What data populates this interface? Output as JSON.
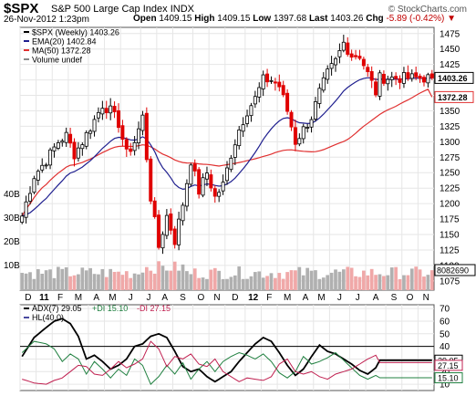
{
  "header": {
    "symbol": "$SPX",
    "description": "S&P 500 Large Cap Index",
    "exchange": "INDX",
    "brand": "© StockCharts.com",
    "date": "26-Nov-2012 1:23pm",
    "open_label": "Open",
    "open": "1409.15",
    "high_label": "High",
    "high": "1409.15",
    "low_label": "Low",
    "low": "1397.68",
    "last_label": "Last",
    "last": "1403.26",
    "chg_label": "Chg",
    "chg": "-5.89 (-0.42%)",
    "chg_arrow": "▼"
  },
  "colors": {
    "up": "#000000",
    "down": "#e00000",
    "ema": "#1f1f8f",
    "ma": "#e03030",
    "volume_up": "#b0b0b0",
    "volume_down": "#f0a8a8",
    "adx": "#000000",
    "plus_di": "#208040",
    "minus_di": "#c02050",
    "hl": "#4a4aa0"
  },
  "price_legend": [
    "$SPX (Weekly) 1403.26",
    "EMA(20) 1402.84",
    "MA(50) 1372.28",
    "Volume undef"
  ],
  "indicator_legend": {
    "adx": "ADX(7) 29.05",
    "plus_di": "+DI 15.10",
    "minus_di": "-DI 27.15",
    "hl": "HL(40.0)"
  },
  "chart_data": [
    {
      "type": "candlestick",
      "title": "$SPX (Weekly) 1403.26",
      "ylim": [
        1060,
        1485
      ],
      "yticks": [
        1075,
        1100,
        1125,
        1150,
        1175,
        1200,
        1225,
        1250,
        1275,
        1300,
        1325,
        1350,
        1375,
        1400,
        1425,
        1450,
        1475
      ],
      "value_tags": [
        "1403.26",
        "1372.28"
      ],
      "volume_ticks": [
        "40B",
        "30B",
        "20B",
        "10B"
      ],
      "volume_tag": "8082690",
      "x_labels": [
        "D",
        "11",
        "F",
        "M",
        "A",
        "M",
        "J",
        "J",
        "A",
        "S",
        "O",
        "N",
        "D",
        "12",
        "F",
        "M",
        "A",
        "M",
        "J",
        "J",
        "A",
        "S",
        "O",
        "N"
      ],
      "x_bold": [
        "11",
        "12"
      ],
      "weeks_per_label": [
        4,
        4,
        4,
        5,
        4,
        4,
        5,
        4,
        4,
        5,
        4,
        4,
        5,
        4,
        4,
        5,
        4,
        4,
        5,
        4,
        5,
        4,
        4,
        4
      ],
      "price_knots": [
        [
          0,
          1180
        ],
        [
          3,
          1245
        ],
        [
          6,
          1270
        ],
        [
          9,
          1300
        ],
        [
          11,
          1310
        ],
        [
          13,
          1280
        ],
        [
          15,
          1300
        ],
        [
          18,
          1335
        ],
        [
          20,
          1360
        ],
        [
          22,
          1350
        ],
        [
          24,
          1330
        ],
        [
          26,
          1280
        ],
        [
          28,
          1300
        ],
        [
          30,
          1340
        ],
        [
          32,
          1210
        ],
        [
          34,
          1130
        ],
        [
          36,
          1180
        ],
        [
          38,
          1140
        ],
        [
          40,
          1200
        ],
        [
          42,
          1270
        ],
        [
          44,
          1220
        ],
        [
          46,
          1250
        ],
        [
          48,
          1210
        ],
        [
          50,
          1230
        ],
        [
          52,
          1280
        ],
        [
          54,
          1320
        ],
        [
          56,
          1350
        ],
        [
          58,
          1370
        ],
        [
          60,
          1400
        ],
        [
          62,
          1400
        ],
        [
          64,
          1390
        ],
        [
          66,
          1350
        ],
        [
          68,
          1300
        ],
        [
          70,
          1320
        ],
        [
          72,
          1340
        ],
        [
          74,
          1380
        ],
        [
          76,
          1410
        ],
        [
          78,
          1430
        ],
        [
          80,
          1460
        ],
        [
          82,
          1440
        ],
        [
          84,
          1440
        ],
        [
          86,
          1410
        ],
        [
          88,
          1380
        ],
        [
          89,
          1403.26
        ]
      ],
      "series": [
        {
          "name": "EMA(20)",
          "last": 1402.84
        },
        {
          "name": "MA(50)",
          "last": 1372.28
        }
      ]
    },
    {
      "type": "line",
      "title": "ADX(7) 29.05 +DI 15.10 -DI 27.15",
      "ylim": [
        5,
        73
      ],
      "yticks": [
        10,
        20,
        30,
        40,
        50,
        60,
        70
      ],
      "hline": 40,
      "value_tags": [
        "29.05",
        "27.15",
        "15.10"
      ],
      "series": [
        {
          "name": "ADX(7)",
          "knots": [
            [
              0,
              32
            ],
            [
              3,
              47
            ],
            [
              6,
              55
            ],
            [
              8,
              60
            ],
            [
              10,
              62
            ],
            [
              12,
              58
            ],
            [
              14,
              48
            ],
            [
              16,
              30
            ],
            [
              18,
              33
            ],
            [
              20,
              28
            ],
            [
              22,
              22
            ],
            [
              24,
              25
            ],
            [
              26,
              30
            ],
            [
              28,
              40
            ],
            [
              30,
              42
            ],
            [
              32,
              48
            ],
            [
              34,
              50
            ],
            [
              36,
              47
            ],
            [
              38,
              36
            ],
            [
              40,
              24
            ],
            [
              42,
              20
            ],
            [
              44,
              22
            ],
            [
              46,
              16
            ],
            [
              48,
              12
            ],
            [
              50,
              16
            ],
            [
              52,
              20
            ],
            [
              54,
              28
            ],
            [
              56,
              35
            ],
            [
              58,
              42
            ],
            [
              60,
              47
            ],
            [
              62,
              44
            ],
            [
              64,
              35
            ],
            [
              66,
              25
            ],
            [
              68,
              17
            ],
            [
              70,
              22
            ],
            [
              72,
              32
            ],
            [
              74,
              41
            ],
            [
              76,
              36
            ],
            [
              78,
              34
            ],
            [
              80,
              30
            ],
            [
              82,
              26
            ],
            [
              84,
              21
            ],
            [
              86,
              18
            ],
            [
              88,
              23
            ],
            [
              89,
              29.05
            ]
          ]
        },
        {
          "name": "+DI",
          "knots": [
            [
              0,
              35
            ],
            [
              3,
              44
            ],
            [
              6,
              42
            ],
            [
              8,
              38
            ],
            [
              10,
              28
            ],
            [
              12,
              34
            ],
            [
              14,
              30
            ],
            [
              16,
              18
            ],
            [
              18,
              28
            ],
            [
              20,
              22
            ],
            [
              22,
              15
            ],
            [
              24,
              22
            ],
            [
              26,
              17
            ],
            [
              28,
              30
            ],
            [
              30,
              25
            ],
            [
              32,
              10
            ],
            [
              34,
              16
            ],
            [
              36,
              25
            ],
            [
              38,
              18
            ],
            [
              40,
              27
            ],
            [
              42,
              14
            ],
            [
              44,
              22
            ],
            [
              46,
              28
            ],
            [
              48,
              20
            ],
            [
              50,
              28
            ],
            [
              52,
              32
            ],
            [
              54,
              35
            ],
            [
              56,
              33
            ],
            [
              58,
              30
            ],
            [
              60,
              34
            ],
            [
              62,
              28
            ],
            [
              64,
              19
            ],
            [
              66,
              15
            ],
            [
              68,
              20
            ],
            [
              70,
              32
            ],
            [
              72,
              26
            ],
            [
              74,
              28
            ],
            [
              76,
              31
            ],
            [
              78,
              35
            ],
            [
              80,
              29
            ],
            [
              82,
              23
            ],
            [
              84,
              17
            ],
            [
              86,
              14
            ],
            [
              88,
              17
            ],
            [
              89,
              15.1
            ]
          ]
        },
        {
          "name": "-DI",
          "knots": [
            [
              0,
              14
            ],
            [
              3,
              11
            ],
            [
              6,
              10
            ],
            [
              8,
              13
            ],
            [
              10,
              15
            ],
            [
              12,
              20
            ],
            [
              14,
              25
            ],
            [
              16,
              24
            ],
            [
              18,
              18
            ],
            [
              20,
              17
            ],
            [
              22,
              22
            ],
            [
              24,
              28
            ],
            [
              26,
              23
            ],
            [
              28,
              26
            ],
            [
              30,
              30
            ],
            [
              32,
              44
            ],
            [
              34,
              38
            ],
            [
              36,
              24
            ],
            [
              38,
              32
            ],
            [
              40,
              30
            ],
            [
              42,
              34
            ],
            [
              44,
              26
            ],
            [
              46,
              24
            ],
            [
              48,
              30
            ],
            [
              50,
              20
            ],
            [
              52,
              16
            ],
            [
              54,
              12
            ],
            [
              56,
              15
            ],
            [
              58,
              14
            ],
            [
              60,
              13
            ],
            [
              62,
              16
            ],
            [
              64,
              26
            ],
            [
              66,
              30
            ],
            [
              68,
              20
            ],
            [
              70,
              18
            ],
            [
              72,
              20
            ],
            [
              74,
              16
            ],
            [
              76,
              14
            ],
            [
              78,
              18
            ],
            [
              80,
              20
            ],
            [
              82,
              22
            ],
            [
              84,
              26
            ],
            [
              86,
              30
            ],
            [
              88,
              33
            ],
            [
              89,
              27.15
            ]
          ]
        }
      ]
    }
  ]
}
